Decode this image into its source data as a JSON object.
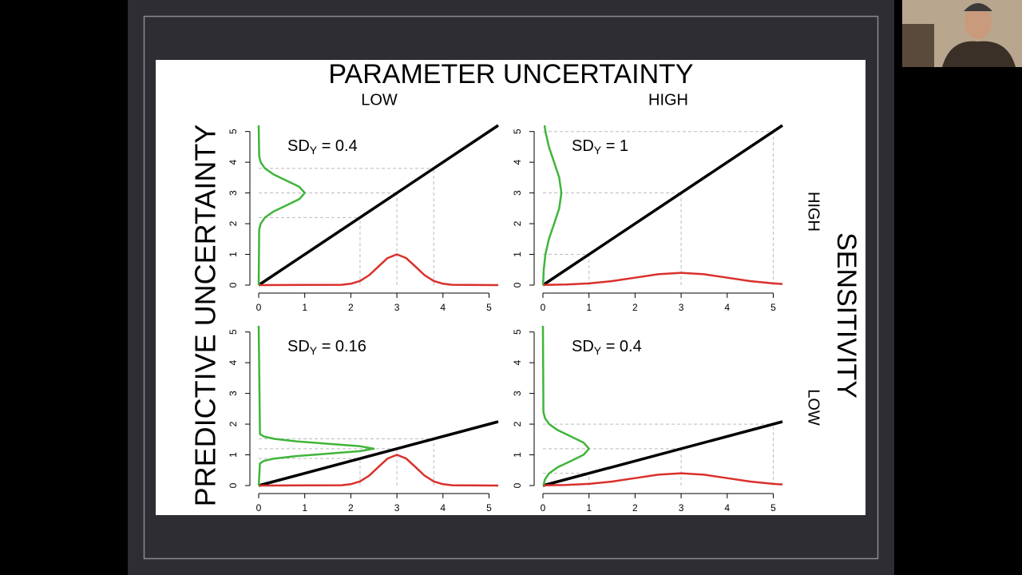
{
  "slide": {
    "title": "PARAMETER UNCERTAINTY",
    "col_labels": [
      "LOW",
      "HIGH"
    ],
    "row_labels": [
      "HIGH",
      "LOW"
    ],
    "left_title": "PREDICTIVE UNCERTAINTY",
    "right_title": "SENSITIVITY"
  },
  "chart_data": [
    {
      "type": "line",
      "sd_label": [
        "SD",
        "Y",
        " = 0.4"
      ],
      "xlim": [
        0,
        5.2
      ],
      "ylim": [
        0,
        5.2
      ],
      "xticks": [
        0,
        1,
        2,
        3,
        4,
        5
      ],
      "yticks": [
        0,
        1,
        2,
        3,
        4,
        5
      ],
      "guides": {
        "x": [
          2.2,
          3,
          3.8
        ],
        "y": [
          2.2,
          3,
          3.8
        ]
      },
      "series": [
        {
          "color": "#000000",
          "x": [
            0,
            5.2
          ],
          "y": [
            0,
            5.2
          ]
        },
        {
          "color": "#d9302b",
          "x": [
            0,
            1.8,
            2.0,
            2.2,
            2.4,
            2.6,
            2.8,
            3.0,
            3.2,
            3.4,
            3.6,
            3.8,
            4.0,
            4.2,
            5.2
          ],
          "y": [
            0,
            0.011,
            0.044,
            0.135,
            0.325,
            0.607,
            0.882,
            1,
            0.882,
            0.607,
            0.325,
            0.135,
            0.044,
            0.011,
            0
          ]
        },
        {
          "color": "#3fb53a",
          "x": [
            0,
            0.011,
            0.044,
            0.135,
            0.325,
            0.607,
            0.882,
            1,
            0.882,
            0.607,
            0.325,
            0.135,
            0.044,
            0.011,
            0
          ],
          "y": [
            0,
            1.8,
            2.0,
            2.2,
            2.4,
            2.6,
            2.8,
            3.0,
            3.2,
            3.4,
            3.6,
            3.8,
            4.0,
            4.2,
            5.2
          ]
        }
      ]
    },
    {
      "type": "line",
      "sd_label": [
        "SD",
        "Y",
        " = 1"
      ],
      "xlim": [
        0,
        5.2
      ],
      "ylim": [
        0,
        5.2
      ],
      "xticks": [
        0,
        1,
        2,
        3,
        4,
        5
      ],
      "yticks": [
        0,
        1,
        2,
        3,
        4,
        5
      ],
      "guides": {
        "x": [
          1,
          3,
          5
        ],
        "y": [
          1,
          3,
          5
        ]
      },
      "series": [
        {
          "color": "#000000",
          "x": [
            0,
            5.2
          ],
          "y": [
            0,
            5.2
          ]
        },
        {
          "color": "#d9302b",
          "x": [
            0,
            0.5,
            1,
            1.5,
            2,
            2.5,
            3,
            3.5,
            4,
            4.5,
            5,
            5.2
          ],
          "y": [
            0.004,
            0.018,
            0.054,
            0.13,
            0.243,
            0.353,
            0.4,
            0.353,
            0.243,
            0.13,
            0.054,
            0.036
          ]
        },
        {
          "color": "#3fb53a",
          "x": [
            0.004,
            0.018,
            0.054,
            0.13,
            0.243,
            0.353,
            0.4,
            0.353,
            0.243,
            0.13,
            0.054,
            0.036
          ],
          "y": [
            0,
            0.5,
            1,
            1.5,
            2,
            2.5,
            3,
            3.5,
            4,
            4.5,
            5,
            5.2
          ]
        }
      ]
    },
    {
      "type": "line",
      "sd_label": [
        "SD",
        "Y",
        " = 0.16"
      ],
      "xlim": [
        0,
        5.2
      ],
      "ylim": [
        0,
        5.2
      ],
      "xticks": [
        0,
        1,
        2,
        3,
        4,
        5
      ],
      "yticks": [
        0,
        1,
        2,
        3,
        4,
        5
      ],
      "guides": {
        "x": [
          2.2,
          3,
          3.8
        ],
        "y": [
          0.88,
          1.2,
          1.52
        ]
      },
      "series": [
        {
          "color": "#000000",
          "x": [
            0,
            5.2
          ],
          "y": [
            0,
            2.08
          ]
        },
        {
          "color": "#d9302b",
          "x": [
            0,
            1.8,
            2.0,
            2.2,
            2.4,
            2.6,
            2.8,
            3.0,
            3.2,
            3.4,
            3.6,
            3.8,
            4.0,
            4.2,
            5.2
          ],
          "y": [
            0,
            0.011,
            0.044,
            0.135,
            0.325,
            0.607,
            0.882,
            1,
            0.882,
            0.607,
            0.325,
            0.135,
            0.044,
            0.011,
            0
          ]
        },
        {
          "color": "#3fb53a",
          "x": [
            0,
            0.028,
            0.11,
            0.338,
            0.812,
            1.516,
            2.206,
            2.5,
            2.206,
            1.516,
            0.812,
            0.338,
            0.11,
            0.028,
            0
          ],
          "y": [
            0,
            0.72,
            0.8,
            0.88,
            0.96,
            1.04,
            1.12,
            1.2,
            1.28,
            1.36,
            1.44,
            1.52,
            1.6,
            1.68,
            5.2
          ]
        }
      ]
    },
    {
      "type": "line",
      "sd_label": [
        "SD",
        "Y",
        " = 0.4"
      ],
      "xlim": [
        0,
        5.2
      ],
      "ylim": [
        0,
        5.2
      ],
      "xticks": [
        0,
        1,
        2,
        3,
        4,
        5
      ],
      "yticks": [
        0,
        1,
        2,
        3,
        4,
        5
      ],
      "guides": {
        "x": [
          1,
          3,
          5
        ],
        "y": [
          0.4,
          1.2,
          2.0
        ]
      },
      "series": [
        {
          "color": "#000000",
          "x": [
            0,
            5.2
          ],
          "y": [
            0,
            2.08
          ]
        },
        {
          "color": "#d9302b",
          "x": [
            0,
            0.5,
            1,
            1.5,
            2,
            2.5,
            3,
            3.5,
            4,
            4.5,
            5,
            5.2
          ],
          "y": [
            0.004,
            0.018,
            0.054,
            0.13,
            0.243,
            0.353,
            0.4,
            0.353,
            0.243,
            0.13,
            0.054,
            0.036
          ]
        },
        {
          "color": "#3fb53a",
          "x": [
            0.011,
            0.044,
            0.135,
            0.325,
            0.607,
            0.882,
            1,
            0.882,
            0.607,
            0.325,
            0.135,
            0.044,
            0.011,
            0
          ],
          "y": [
            0,
            0.2,
            0.4,
            0.6,
            0.8,
            1.0,
            1.2,
            1.4,
            1.6,
            1.8,
            2.0,
            2.2,
            2.4,
            5.2
          ]
        }
      ]
    }
  ]
}
